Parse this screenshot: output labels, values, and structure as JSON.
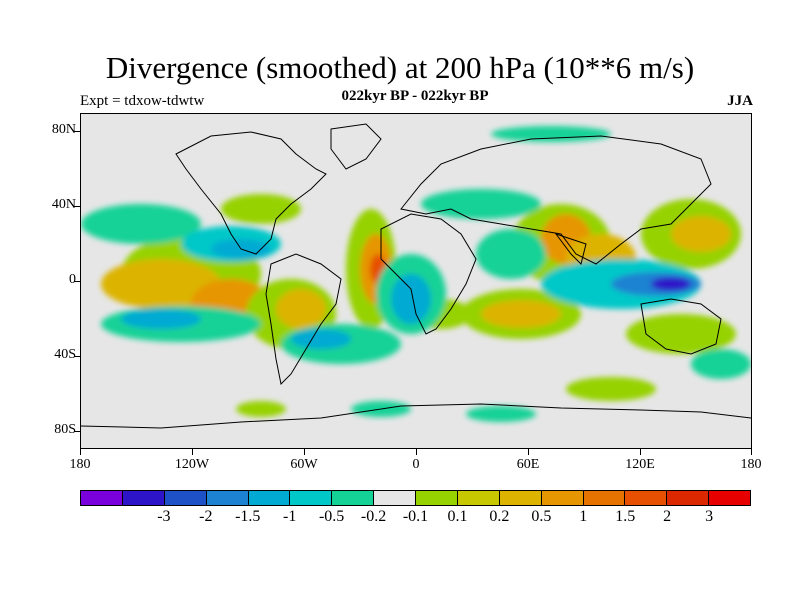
{
  "title": "Divergence (smoothed) at 200 hPa (10**6 m/s)",
  "subtitle": "022kyr BP - 022kyr BP",
  "expt_label": "Expt = tdxow-tdwtw",
  "season": "JJA",
  "map": {
    "lat_labels": [
      "80N",
      "40N",
      "0",
      "40S",
      "80S"
    ],
    "lon_labels": [
      "180",
      "120W",
      "60W",
      "0",
      "60E",
      "120E",
      "180"
    ],
    "colors": {
      "background": "#e6e6e6",
      "coastline": "#000000"
    }
  },
  "colorbar": {
    "colors": [
      "#7a00dc",
      "#2d14c8",
      "#1e50c8",
      "#1e82d2",
      "#00aad2",
      "#00c8c8",
      "#14d296",
      "#e6e6e6",
      "#96d200",
      "#c8c800",
      "#dcb400",
      "#e69600",
      "#e67300",
      "#e65000",
      "#dc2800",
      "#e60000"
    ],
    "labels": [
      "-3",
      "-2",
      "-1.5",
      "-1",
      "-0.5",
      "-0.2",
      "-0.1",
      "0.1",
      "0.2",
      "0.5",
      "1",
      "1.5",
      "2",
      "3"
    ]
  }
}
